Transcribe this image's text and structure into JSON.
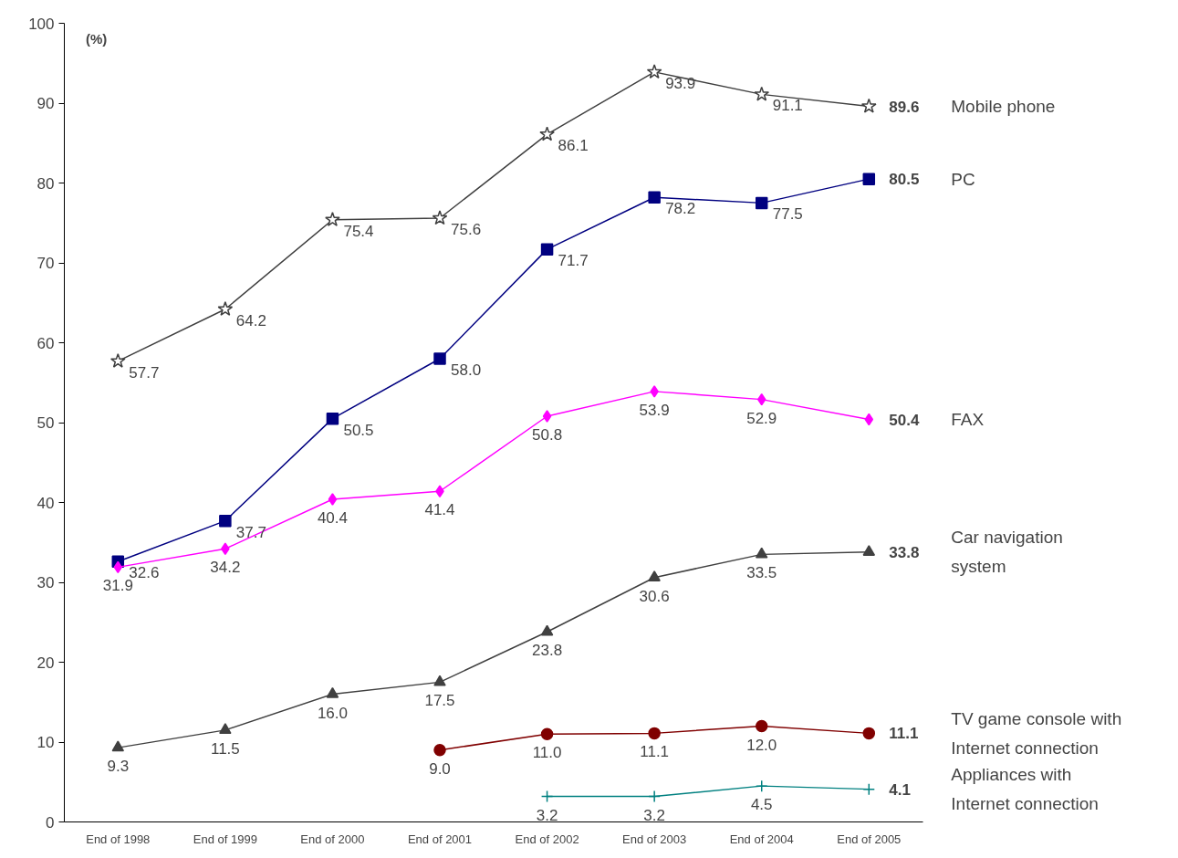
{
  "chart_data": {
    "type": "line",
    "ylabel": "(%)",
    "categories": [
      "End of 1998",
      "End of 1999",
      "End of 2000",
      "End of 2001",
      "End of 2002",
      "End of 2003",
      "End of 2004",
      "End of 2005"
    ],
    "ylim": [
      0,
      100
    ],
    "yticks": [
      0,
      10,
      20,
      30,
      40,
      50,
      60,
      70,
      80,
      90,
      100
    ],
    "grid": false,
    "series": [
      {
        "name": "Mobile phone",
        "color": "#404040",
        "marker": "star",
        "values": [
          57.7,
          64.2,
          75.4,
          75.6,
          86.1,
          93.9,
          91.1,
          89.6
        ],
        "value_labels": [
          "57.7",
          "64.2",
          "75.4",
          "75.6",
          "86.1",
          "93.9",
          "91.1",
          "89.6"
        ]
      },
      {
        "name": "PC",
        "color": "#000080",
        "marker": "square",
        "values": [
          32.6,
          37.7,
          50.5,
          58.0,
          71.7,
          78.2,
          77.5,
          80.5
        ],
        "value_labels": [
          "32.6",
          "37.7",
          "50.5",
          "58.0",
          "71.7",
          "78.2",
          "77.5",
          "80.5"
        ]
      },
      {
        "name": "FAX",
        "color": "#ff00ff",
        "marker": "diamond",
        "values": [
          31.9,
          34.2,
          40.4,
          41.4,
          50.8,
          53.9,
          52.9,
          50.4
        ],
        "value_labels": [
          "31.9",
          "34.2",
          "40.4",
          "41.4",
          "50.8",
          "53.9",
          "52.9",
          "50.4"
        ]
      },
      {
        "name": "Car navigation system",
        "color": "#404040",
        "marker": "triangle",
        "values": [
          9.3,
          11.5,
          16.0,
          17.5,
          23.8,
          30.6,
          33.5,
          33.8
        ],
        "value_labels": [
          "9.3",
          "11.5",
          "16.0",
          "17.5",
          "23.8",
          "30.6",
          "33.5",
          "33.8"
        ]
      },
      {
        "name": "TV game console with Internet connection",
        "color": "#800000",
        "marker": "circle",
        "values": [
          null,
          null,
          null,
          9.0,
          11.0,
          11.1,
          12.0,
          11.1
        ],
        "value_labels": [
          null,
          null,
          null,
          "9.0",
          "11.0",
          "11.1",
          "12.0",
          "11.1"
        ]
      },
      {
        "name": "Appliances with Internet connection",
        "color": "#008080",
        "marker": "cross",
        "values": [
          null,
          null,
          null,
          null,
          3.2,
          3.2,
          4.5,
          4.1
        ],
        "value_labels": [
          null,
          null,
          null,
          null,
          "3.2",
          "3.2",
          "4.5",
          "4.1"
        ]
      }
    ]
  }
}
